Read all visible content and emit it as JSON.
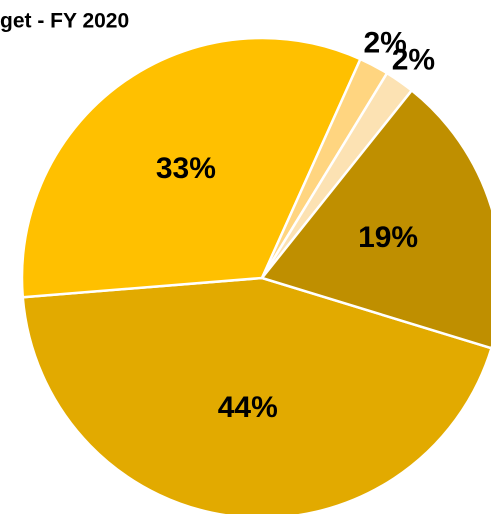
{
  "chart_data": {
    "type": "pie",
    "title": "get - FY 2020",
    "categories": [
      null,
      null,
      null,
      null,
      null
    ],
    "values": [
      44,
      33,
      2,
      2,
      19
    ],
    "value_labels": [
      "44%",
      "33%",
      "2%",
      "2%",
      "19%"
    ],
    "colors": [
      "#E2AA00",
      "#FFC000",
      "#FFD580",
      "#FCE2B3",
      "#BF8F00"
    ]
  }
}
